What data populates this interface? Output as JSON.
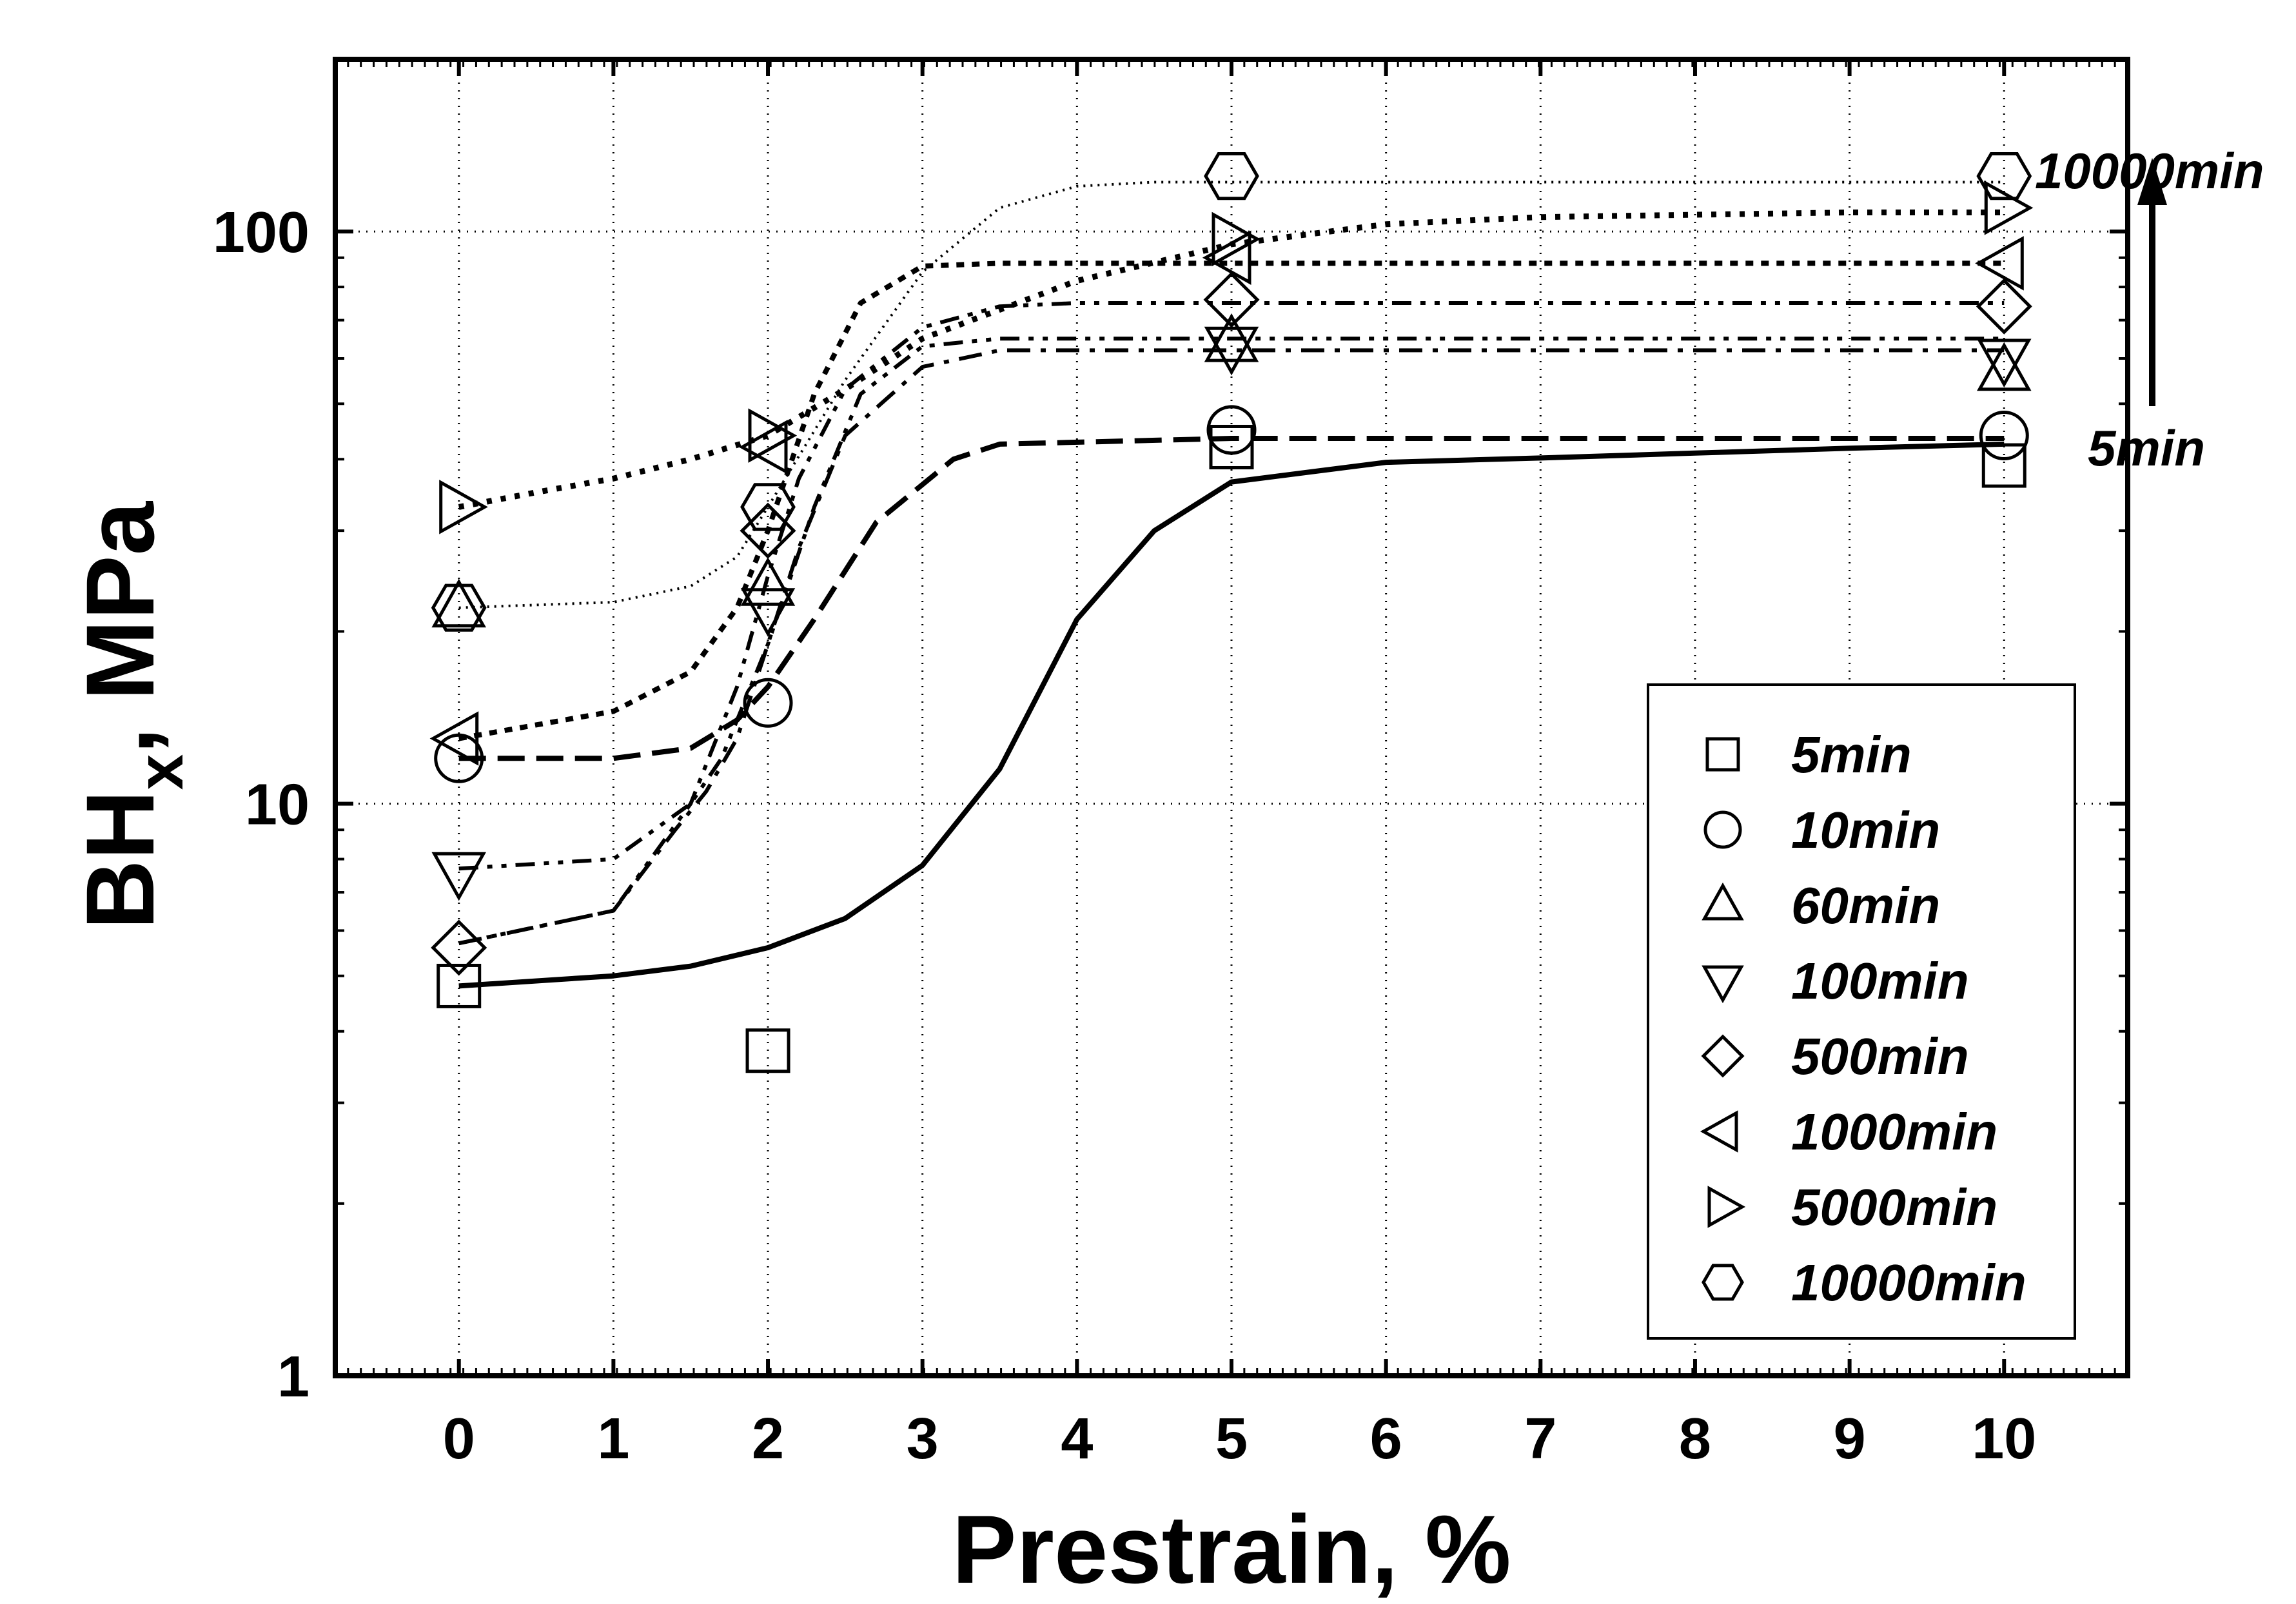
{
  "chart_data": {
    "type": "line",
    "title": "",
    "xlabel": "Prestrain, %",
    "ylabel_main": "BH",
    "ylabel_sub": "x",
    "ylabel_unit": ", MPa",
    "xlim": [
      -0.8,
      10.8
    ],
    "ylim": [
      1,
      200
    ],
    "y_scale": "log",
    "grid": true,
    "x_ticks": [
      0,
      1,
      2,
      3,
      4,
      5,
      6,
      7,
      8,
      9,
      10
    ],
    "x_tick_labels": [
      "0",
      "1",
      "2",
      "3",
      "4",
      "5",
      "6",
      "7",
      "8",
      "9",
      "10"
    ],
    "y_ticks": [
      1,
      10,
      100
    ],
    "y_tick_labels": [
      "1",
      "10",
      "100"
    ],
    "legend_position": "lower-right",
    "series": [
      {
        "name": "5min",
        "marker": "square",
        "dash": "solid",
        "width": 8,
        "x": [
          0,
          2,
          5,
          10
        ],
        "values": [
          4.8,
          3.7,
          42,
          39
        ],
        "curve_x": [
          0,
          1,
          1.5,
          2,
          2.5,
          3,
          3.5,
          4,
          4.5,
          5,
          6,
          7,
          8,
          9,
          10
        ],
        "curve_y": [
          4.8,
          5.0,
          5.2,
          5.6,
          6.3,
          7.8,
          11.5,
          21,
          30,
          36.5,
          39.5,
          40.2,
          41,
          41.8,
          42.5
        ]
      },
      {
        "name": "10min",
        "marker": "circle",
        "dash": "long-dash",
        "width": 8,
        "x": [
          0,
          2,
          5,
          10
        ],
        "values": [
          12,
          15,
          45,
          44
        ],
        "curve_x": [
          0,
          1,
          1.5,
          1.8,
          2,
          2.3,
          2.7,
          3.2,
          3.5,
          5,
          10
        ],
        "curve_y": [
          12,
          12,
          12.5,
          14,
          16,
          21,
          31,
          40,
          42.5,
          43.5,
          43.5
        ]
      },
      {
        "name": "60min",
        "marker": "triangle-up",
        "dash": "dash-dot",
        "width": 6,
        "x": [
          0,
          2,
          5,
          10
        ],
        "values": [
          22,
          24,
          64,
          57
        ],
        "curve_x": [
          0,
          1,
          1.4,
          1.6,
          1.8,
          2.0,
          2.2,
          2.5,
          3,
          3.5,
          5,
          10
        ],
        "curve_y": [
          5.7,
          6.5,
          9,
          10.5,
          13,
          19,
          28,
          44,
          58,
          62,
          62,
          62
        ]
      },
      {
        "name": "100min",
        "marker": "triangle-down",
        "dash": "dash-dot-dot",
        "width": 6,
        "x": [
          0,
          2,
          5,
          10
        ],
        "values": [
          7.6,
          22,
          63,
          60
        ],
        "curve_x": [
          0,
          1,
          1.5,
          1.7,
          2.0,
          2.3,
          2.6,
          3,
          3.5,
          5,
          10
        ],
        "curve_y": [
          7.7,
          8,
          10,
          12,
          19,
          33,
          52,
          63,
          65,
          65,
          65
        ]
      },
      {
        "name": "500min",
        "marker": "diamond",
        "dash": "dash-dot-dot",
        "width": 6,
        "x": [
          0,
          2,
          5,
          10
        ],
        "values": [
          5.6,
          30,
          76,
          74
        ],
        "curve_x": [
          0,
          1,
          1.5,
          1.8,
          2.0,
          2.2,
          2.5,
          3,
          3.5,
          4,
          5,
          10
        ],
        "curve_y": [
          5.7,
          6.5,
          10,
          16,
          25,
          37,
          53,
          68,
          74,
          75,
          75,
          75
        ]
      },
      {
        "name": "1000min",
        "marker": "triangle-left",
        "dash": "short-dash",
        "width": 8,
        "x": [
          0,
          2,
          5,
          10
        ],
        "values": [
          13,
          42,
          90,
          88
        ],
        "curve_x": [
          0,
          1,
          1.5,
          1.8,
          2.0,
          2.3,
          2.6,
          3,
          3.5,
          5,
          10
        ],
        "curve_y": [
          13,
          14.5,
          17,
          22,
          30,
          52,
          75,
          87,
          88,
          88,
          88
        ]
      },
      {
        "name": "5000min",
        "marker": "triangle-right",
        "dash": "dotted",
        "width": 9,
        "x": [
          0,
          2,
          5,
          10
        ],
        "values": [
          33,
          44,
          97,
          110
        ],
        "curve_x": [
          0,
          0.5,
          1,
          1.5,
          2,
          2.5,
          3,
          4,
          5,
          6,
          7,
          8,
          9,
          10
        ],
        "curve_y": [
          33,
          35,
          37,
          40,
          44,
          53,
          65,
          82,
          95,
          103,
          106,
          107,
          108,
          108
        ]
      },
      {
        "name": "10000min",
        "marker": "hexagon",
        "dash": "fine-dot",
        "width": 4,
        "x": [
          0,
          2,
          5,
          10
        ],
        "values": [
          22,
          33,
          125,
          125
        ],
        "curve_x": [
          0,
          1,
          1.5,
          1.8,
          2.0,
          2.5,
          3,
          3.5,
          4,
          4.5,
          5,
          10
        ],
        "curve_y": [
          22,
          22.5,
          24,
          27,
          33,
          55,
          85,
          110,
          120,
          122,
          122,
          122
        ]
      }
    ],
    "annotations": {
      "arrow_top_label": "10000min",
      "arrow_bottom_label": "5min"
    }
  }
}
